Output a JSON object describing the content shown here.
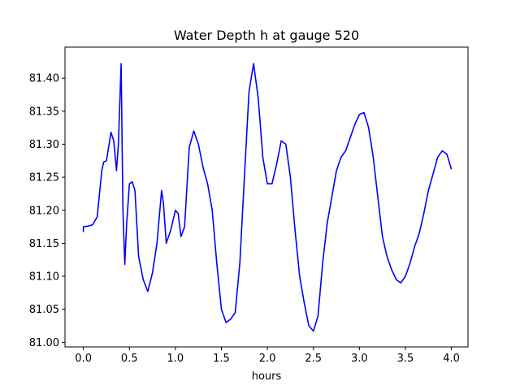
{
  "chart_data": {
    "type": "line",
    "title": "Water Depth h at gauge 520",
    "xlabel": "hours",
    "ylabel": "",
    "xlim": [
      -0.2,
      4.18
    ],
    "ylim": [
      80.993,
      81.447
    ],
    "grid": false,
    "x_ticks": [
      0.0,
      0.5,
      1.0,
      1.5,
      2.0,
      2.5,
      3.0,
      3.5,
      4.0
    ],
    "x_tick_labels": [
      "0.0",
      "0.5",
      "1.0",
      "1.5",
      "2.0",
      "2.5",
      "3.0",
      "3.5",
      "4.0"
    ],
    "y_ticks": [
      81.0,
      81.05,
      81.1,
      81.15,
      81.2,
      81.25,
      81.3,
      81.35,
      81.4
    ],
    "y_tick_labels": [
      "81.00",
      "81.05",
      "81.10",
      "81.15",
      "81.20",
      "81.25",
      "81.30",
      "81.35",
      "81.40"
    ],
    "series": [
      {
        "color": "#0000ff",
        "x": [
          0.0,
          0.0,
          0.05,
          0.1,
          0.15,
          0.2,
          0.22,
          0.25,
          0.3,
          0.33,
          0.36,
          0.38,
          0.41,
          0.43,
          0.45,
          0.47,
          0.5,
          0.53,
          0.56,
          0.6,
          0.65,
          0.7,
          0.75,
          0.8,
          0.85,
          0.87,
          0.9,
          0.95,
          1.0,
          1.03,
          1.06,
          1.1,
          1.15,
          1.2,
          1.25,
          1.3,
          1.35,
          1.4,
          1.45,
          1.5,
          1.55,
          1.6,
          1.65,
          1.7,
          1.75,
          1.8,
          1.85,
          1.9,
          1.95,
          2.0,
          2.05,
          2.1,
          2.15,
          2.2,
          2.25,
          2.3,
          2.35,
          2.4,
          2.45,
          2.5,
          2.55,
          2.6,
          2.65,
          2.7,
          2.75,
          2.8,
          2.85,
          2.9,
          2.95,
          3.0,
          3.05,
          3.1,
          3.15,
          3.2,
          3.25,
          3.3,
          3.35,
          3.4,
          3.45,
          3.5,
          3.55,
          3.6,
          3.65,
          3.7,
          3.75,
          3.8,
          3.85,
          3.9,
          3.95,
          4.0
        ],
        "y": [
          81.167,
          81.175,
          81.176,
          81.178,
          81.19,
          81.26,
          81.273,
          81.275,
          81.318,
          81.305,
          81.26,
          81.3,
          81.422,
          81.2,
          81.118,
          81.18,
          81.24,
          81.243,
          81.23,
          81.13,
          81.095,
          81.077,
          81.105,
          81.15,
          81.23,
          81.21,
          81.15,
          81.17,
          81.2,
          81.195,
          81.16,
          81.175,
          81.295,
          81.32,
          81.3,
          81.265,
          81.24,
          81.2,
          81.12,
          81.05,
          81.03,
          81.035,
          81.045,
          81.12,
          81.25,
          81.38,
          81.422,
          81.37,
          81.28,
          81.24,
          81.24,
          81.27,
          81.305,
          81.3,
          81.25,
          81.17,
          81.1,
          81.06,
          81.025,
          81.017,
          81.04,
          81.12,
          81.18,
          81.22,
          81.26,
          81.28,
          81.29,
          81.31,
          81.33,
          81.345,
          81.348,
          81.325,
          81.28,
          81.22,
          81.16,
          81.13,
          81.11,
          81.095,
          81.09,
          81.1,
          81.12,
          81.145,
          81.165,
          81.195,
          81.23,
          81.255,
          81.28,
          81.29,
          81.285,
          81.262
        ]
      }
    ]
  }
}
